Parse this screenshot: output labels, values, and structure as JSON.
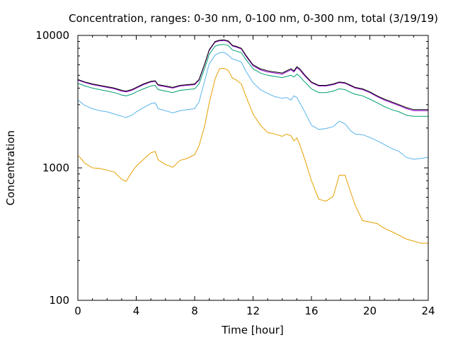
{
  "chart_data": {
    "type": "line",
    "title": "Concentration, ranges: 0-30 nm, 0-100 nm, 0-300 nm, total (3/19/19)",
    "xlabel": "Time [hour]",
    "ylabel": "Concentration",
    "xlim": [
      0,
      24
    ],
    "ylim": [
      100,
      10000
    ],
    "yscale": "log",
    "grid": false,
    "legend": "none",
    "x_ticks": [
      0,
      4,
      8,
      12,
      16,
      20,
      24
    ],
    "x_tick_labels": [
      "0",
      "4",
      "8",
      "12",
      "16",
      "20",
      "24"
    ],
    "y_ticks": [
      100,
      1000,
      10000
    ],
    "y_tick_labels": [
      "100",
      "1000",
      "10000"
    ],
    "series": [
      {
        "color": "#e69f00",
        "x": [
          0,
          0.5,
          1,
          1.5,
          2,
          2.5,
          3,
          3.3,
          3.7,
          4,
          4.5,
          5,
          5.3,
          5.5,
          6,
          6.5,
          7,
          7.5,
          8,
          8.3,
          8.7,
          9,
          9.4,
          9.7,
          10,
          10.3,
          10.6,
          10.8,
          11.2,
          11.5,
          12,
          12.5,
          13,
          13.5,
          14,
          14.3,
          14.6,
          14.8,
          15,
          15.2,
          15.5,
          16,
          16.5,
          17,
          17.5,
          17.9,
          18.3,
          18.7,
          19,
          19.5,
          20,
          20.5,
          21,
          21.5,
          22,
          22.5,
          23,
          23.5,
          24
        ],
        "y": [
          1250,
          1080,
          1000,
          990,
          960,
          930,
          820,
          790,
          930,
          1030,
          1160,
          1300,
          1330,
          1150,
          1060,
          1010,
          1140,
          1180,
          1260,
          1470,
          2100,
          3100,
          4700,
          5600,
          5650,
          5450,
          4750,
          4650,
          4300,
          3500,
          2550,
          2100,
          1850,
          1800,
          1730,
          1800,
          1750,
          1600,
          1680,
          1500,
          1200,
          800,
          580,
          560,
          610,
          880,
          880,
          650,
          520,
          400,
          390,
          380,
          350,
          330,
          310,
          290,
          280,
          270,
          270
        ]
      },
      {
        "color": "#56b4e9",
        "x": [
          0,
          0.5,
          1,
          1.5,
          2,
          2.5,
          3,
          3.3,
          3.7,
          4,
          4.5,
          5,
          5.3,
          5.5,
          6,
          6.5,
          7,
          7.5,
          8,
          8.3,
          8.7,
          9,
          9.4,
          9.7,
          10,
          10.3,
          10.6,
          10.8,
          11.2,
          11.5,
          12,
          12.5,
          13,
          13.5,
          14,
          14.3,
          14.6,
          14.8,
          15,
          15.2,
          15.5,
          16,
          16.5,
          17,
          17.5,
          17.9,
          18.3,
          18.7,
          19,
          19.5,
          20,
          20.5,
          21,
          21.5,
          22,
          22.5,
          23,
          23.5,
          24
        ],
        "y": [
          3250,
          2950,
          2800,
          2700,
          2650,
          2550,
          2450,
          2400,
          2500,
          2650,
          2850,
          3050,
          3100,
          2800,
          2700,
          2600,
          2700,
          2750,
          2800,
          3150,
          4600,
          6100,
          7100,
          7400,
          7450,
          7100,
          6600,
          6550,
          6300,
          5400,
          4400,
          3900,
          3650,
          3450,
          3350,
          3400,
          3250,
          3500,
          3400,
          3100,
          2700,
          2100,
          1950,
          1980,
          2050,
          2250,
          2150,
          1900,
          1800,
          1780,
          1700,
          1600,
          1500,
          1400,
          1330,
          1200,
          1160,
          1180,
          1200
        ]
      },
      {
        "color": "#009e73",
        "x": [
          0,
          0.5,
          1,
          1.5,
          2,
          2.5,
          3,
          3.3,
          3.7,
          4,
          4.5,
          5,
          5.3,
          5.5,
          6,
          6.5,
          7,
          7.5,
          8,
          8.3,
          8.7,
          9,
          9.4,
          9.7,
          10,
          10.3,
          10.6,
          10.8,
          11.2,
          11.5,
          12,
          12.5,
          13,
          13.5,
          14,
          14.3,
          14.6,
          14.8,
          15,
          15.2,
          15.5,
          16,
          16.5,
          17,
          17.5,
          17.9,
          18.3,
          18.7,
          19,
          19.5,
          20,
          20.5,
          21,
          21.5,
          22,
          22.5,
          23,
          23.5,
          24
        ],
        "y": [
          4350,
          4150,
          4000,
          3900,
          3800,
          3700,
          3550,
          3500,
          3600,
          3750,
          3950,
          4150,
          4200,
          3900,
          3800,
          3700,
          3850,
          3900,
          3950,
          4300,
          5700,
          7200,
          8300,
          8500,
          8550,
          8400,
          7750,
          7650,
          7400,
          6600,
          5600,
          5200,
          5000,
          4900,
          4800,
          4900,
          5000,
          4850,
          5100,
          4900,
          4500,
          3950,
          3700,
          3700,
          3800,
          3950,
          3900,
          3700,
          3600,
          3500,
          3300,
          3100,
          2900,
          2750,
          2650,
          2500,
          2450,
          2450,
          2450
        ]
      },
      {
        "color": "#9400d3",
        "x": [
          0,
          0.5,
          1,
          1.5,
          2,
          2.5,
          3,
          3.3,
          3.7,
          4,
          4.5,
          5,
          5.3,
          5.5,
          6,
          6.5,
          7,
          7.5,
          8,
          8.3,
          8.7,
          9,
          9.4,
          9.7,
          10,
          10.3,
          10.6,
          10.8,
          11.2,
          11.5,
          12,
          12.5,
          13,
          13.5,
          14,
          14.3,
          14.6,
          14.8,
          15,
          15.2,
          15.5,
          16,
          16.5,
          17,
          17.5,
          17.9,
          18.3,
          18.7,
          19,
          19.5,
          20,
          20.5,
          21,
          21.5,
          22,
          22.5,
          23,
          23.5,
          24
        ],
        "y": [
          4600,
          4400,
          4250,
          4150,
          4050,
          3950,
          3800,
          3750,
          3850,
          4000,
          4250,
          4450,
          4500,
          4200,
          4100,
          4000,
          4150,
          4200,
          4250,
          4600,
          6100,
          7700,
          8900,
          9100,
          9150,
          9000,
          8300,
          8200,
          7900,
          7000,
          5900,
          5500,
          5300,
          5200,
          5100,
          5300,
          5500,
          5300,
          5700,
          5500,
          5000,
          4400,
          4150,
          4150,
          4250,
          4400,
          4350,
          4150,
          4000,
          3900,
          3700,
          3450,
          3250,
          3100,
          2950,
          2800,
          2700,
          2700,
          2700
        ]
      },
      {
        "color": "#000000",
        "x": [
          0,
          0.5,
          1,
          1.5,
          2,
          2.5,
          3,
          3.3,
          3.7,
          4,
          4.5,
          5,
          5.3,
          5.5,
          6,
          6.5,
          7,
          7.5,
          8,
          8.3,
          8.7,
          9,
          9.4,
          9.7,
          10,
          10.3,
          10.6,
          10.8,
          11.2,
          11.5,
          12,
          12.5,
          13,
          13.5,
          14,
          14.3,
          14.6,
          14.8,
          15,
          15.2,
          15.5,
          16,
          16.5,
          17,
          17.5,
          17.9,
          18.3,
          18.7,
          19,
          19.5,
          20,
          20.5,
          21,
          21.5,
          22,
          22.5,
          23,
          23.5,
          24
        ],
        "y": [
          4650,
          4450,
          4300,
          4200,
          4100,
          4000,
          3850,
          3800,
          3900,
          4050,
          4300,
          4500,
          4550,
          4250,
          4150,
          4050,
          4200,
          4250,
          4300,
          4650,
          6150,
          7800,
          9000,
          9200,
          9250,
          9100,
          8400,
          8300,
          8000,
          7100,
          6000,
          5600,
          5400,
          5300,
          5200,
          5400,
          5600,
          5400,
          5800,
          5600,
          5100,
          4450,
          4200,
          4200,
          4300,
          4450,
          4400,
          4200,
          4050,
          3950,
          3750,
          3500,
          3300,
          3150,
          3000,
          2850,
          2750,
          2750,
          2750
        ]
      }
    ]
  }
}
